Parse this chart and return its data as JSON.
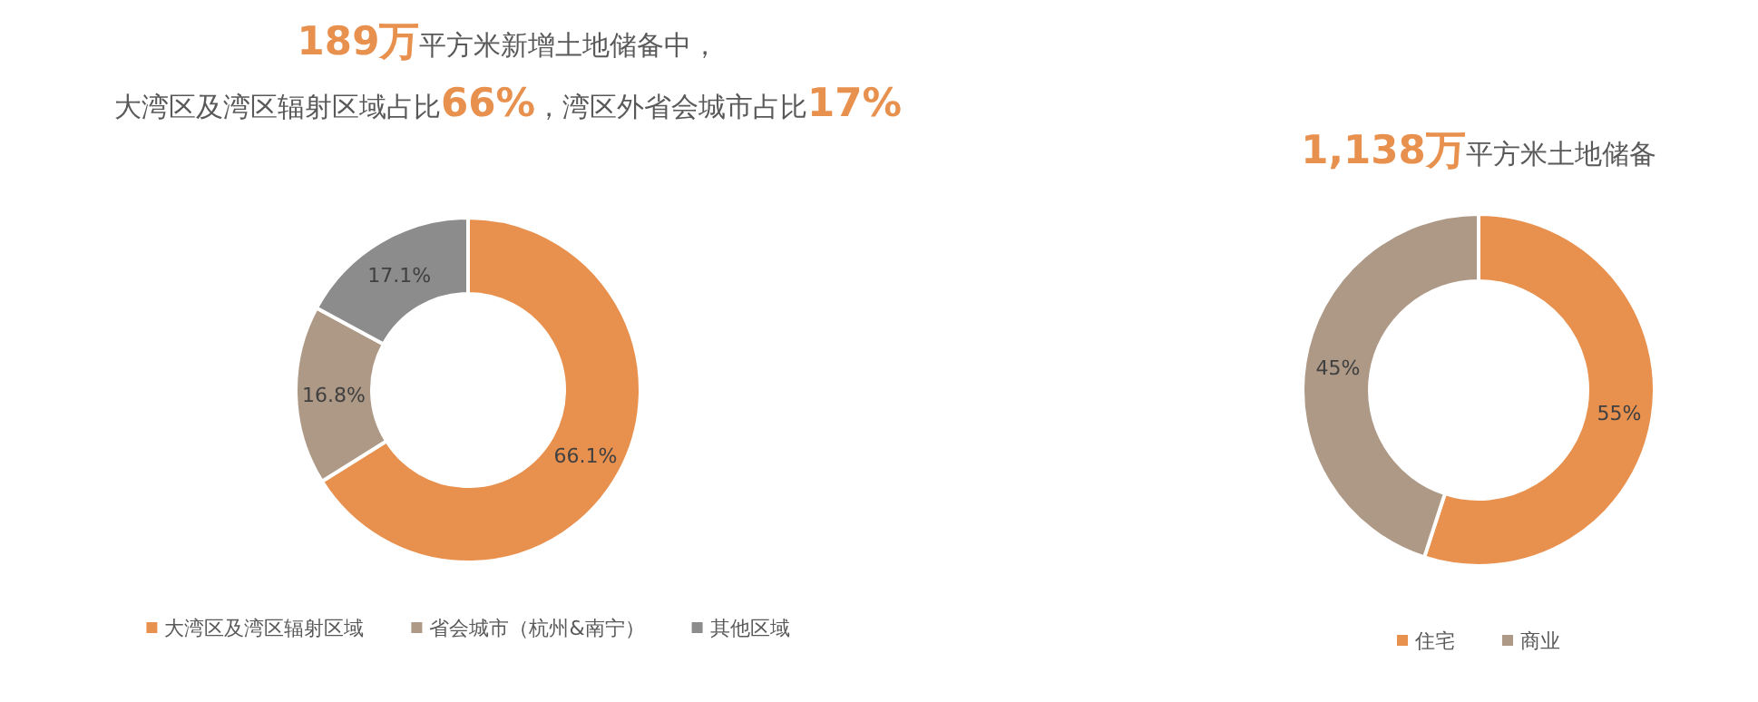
{
  "chart_data": [
    {
      "type": "donut",
      "title": "**189万**平方米新增土地储备中，",
      "subtitle": "大湾区及湾区辐射区域占比**66%**，湾区外省会城市占比**17%**",
      "categories": [
        "大湾区及湾区辐射区域",
        "省会城市（杭州&南宁）",
        "其他区域"
      ],
      "values": [
        66.1,
        16.8,
        17.1
      ],
      "value_labels": [
        "66.1%",
        "16.8%",
        "17.1%"
      ],
      "colors": [
        "#e8914f",
        "#ad9986",
        "#8c8c8c"
      ],
      "legend": "bottom"
    },
    {
      "type": "donut",
      "title": "**1,138万**平方米土地储备",
      "categories": [
        "住宅",
        "商业"
      ],
      "values": [
        55,
        45
      ],
      "value_labels": [
        "55%",
        "45%"
      ],
      "colors": [
        "#e8914f",
        "#ad9986"
      ],
      "legend": "bottom"
    }
  ]
}
